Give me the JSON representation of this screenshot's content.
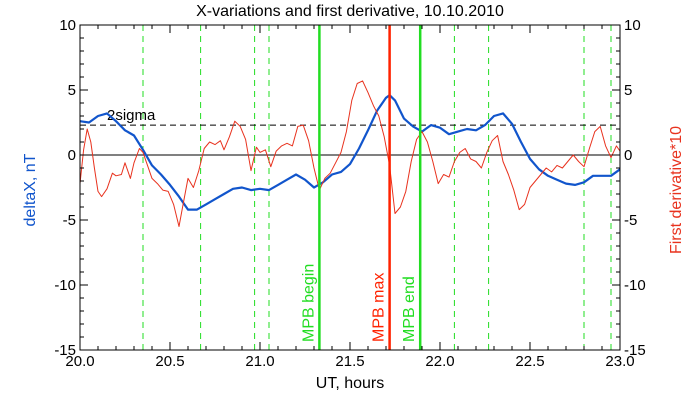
{
  "chart_data": {
    "type": "line",
    "title": "X-variations and first derivative, 10.10.2010",
    "xlabel": "UT, hours",
    "ylabel_left": "deltaX, nT",
    "ylabel_right": "First derivative*10",
    "xlim": [
      20.0,
      23.0
    ],
    "ylim": [
      -15,
      10
    ],
    "x_ticks": [
      "20.0",
      "20.5",
      "21.0",
      "21.5",
      "22.0",
      "22.5",
      "23.0"
    ],
    "y_ticks_left": [
      "-15",
      "-10",
      "-5",
      "0",
      "5",
      "10"
    ],
    "y_ticks_right": [
      "-15",
      "-10",
      "-5",
      "0",
      "5",
      "10"
    ],
    "colors": {
      "deltaX": "#1155cc",
      "derivative": "#e8321e",
      "mpb_green": "#22dd22",
      "mpb_max": "#ff2200",
      "dashed_green": "#22dd22"
    },
    "threshold": {
      "label": "2sigma",
      "value": 2.3
    },
    "zero_line": 0,
    "dashed_verticals": [
      20.35,
      20.67,
      20.97,
      21.05,
      22.08,
      22.27,
      22.8,
      22.95
    ],
    "markers": [
      {
        "label": "MPB begin",
        "x": 21.33,
        "color": "#22dd22"
      },
      {
        "label": "MPB max",
        "x": 21.72,
        "color": "#ff2200"
      },
      {
        "label": "MPB end",
        "x": 21.89,
        "color": "#22dd22"
      }
    ],
    "series": [
      {
        "key": "deltaX",
        "axis": "left",
        "color": "#1155cc",
        "x": [
          20.0,
          20.05,
          20.1,
          20.15,
          20.2,
          20.25,
          20.3,
          20.35,
          20.4,
          20.45,
          20.5,
          20.55,
          20.6,
          20.65,
          20.7,
          20.75,
          20.8,
          20.85,
          20.9,
          20.95,
          21.0,
          21.05,
          21.1,
          21.15,
          21.2,
          21.25,
          21.3,
          21.35,
          21.4,
          21.45,
          21.5,
          21.55,
          21.6,
          21.65,
          21.7,
          21.72,
          21.75,
          21.8,
          21.85,
          21.9,
          21.95,
          22.0,
          22.05,
          22.1,
          22.15,
          22.2,
          22.25,
          22.3,
          22.35,
          22.4,
          22.45,
          22.5,
          22.55,
          22.6,
          22.65,
          22.7,
          22.75,
          22.8,
          22.85,
          22.9,
          22.95,
          23.0
        ],
        "y": [
          2.6,
          2.5,
          3.0,
          3.2,
          2.6,
          1.9,
          1.5,
          0.4,
          -0.8,
          -1.5,
          -2.3,
          -3.2,
          -4.2,
          -4.2,
          -3.8,
          -3.4,
          -3.0,
          -2.6,
          -2.5,
          -2.7,
          -2.6,
          -2.7,
          -2.3,
          -1.9,
          -1.5,
          -1.9,
          -2.5,
          -2.1,
          -1.5,
          -1.3,
          -0.7,
          0.5,
          1.9,
          3.4,
          4.4,
          4.6,
          4.2,
          2.8,
          2.2,
          1.8,
          2.3,
          2.1,
          1.6,
          1.8,
          2.0,
          1.9,
          2.3,
          3.0,
          3.2,
          2.4,
          1.0,
          -0.3,
          -1.1,
          -1.6,
          -1.9,
          -2.2,
          -2.3,
          -2.1,
          -1.6,
          -1.6,
          -1.6,
          -1.1
        ]
      },
      {
        "key": "derivative",
        "axis": "right",
        "color": "#e8321e",
        "x": [
          20.0,
          20.02,
          20.04,
          20.06,
          20.08,
          20.1,
          20.12,
          20.15,
          20.18,
          20.2,
          20.23,
          20.25,
          20.28,
          20.3,
          20.33,
          20.35,
          20.37,
          20.4,
          20.43,
          20.46,
          20.49,
          20.52,
          20.55,
          20.57,
          20.6,
          20.63,
          20.66,
          20.69,
          20.72,
          20.75,
          20.78,
          20.8,
          20.83,
          20.86,
          20.89,
          20.92,
          20.95,
          20.98,
          21.0,
          21.03,
          21.06,
          21.09,
          21.12,
          21.15,
          21.18,
          21.21,
          21.24,
          21.27,
          21.3,
          21.33,
          21.36,
          21.39,
          21.42,
          21.45,
          21.48,
          21.51,
          21.54,
          21.57,
          21.6,
          21.63,
          21.66,
          21.69,
          21.72,
          21.75,
          21.78,
          21.81,
          21.84,
          21.87,
          21.9,
          21.93,
          21.96,
          21.99,
          22.02,
          22.05,
          22.08,
          22.11,
          22.14,
          22.17,
          22.2,
          22.23,
          22.26,
          22.29,
          22.32,
          22.35,
          22.38,
          22.41,
          22.44,
          22.47,
          22.5,
          22.53,
          22.56,
          22.59,
          22.62,
          22.65,
          22.68,
          22.71,
          22.74,
          22.77,
          22.8,
          22.83,
          22.86,
          22.89,
          22.92,
          22.95,
          22.98,
          23.0
        ],
        "y": [
          -2.2,
          0.4,
          2.0,
          1.0,
          -1.0,
          -2.8,
          -3.2,
          -2.6,
          -1.4,
          -1.6,
          -1.5,
          -0.6,
          -1.8,
          -0.6,
          0.5,
          0.2,
          -0.6,
          -1.8,
          -2.2,
          -2.7,
          -2.8,
          -3.8,
          -5.5,
          -4.0,
          -1.8,
          -2.5,
          -1.2,
          0.5,
          1.0,
          0.8,
          1.1,
          0.4,
          1.4,
          2.6,
          2.2,
          1.2,
          -1.2,
          0.6,
          0.2,
          0.4,
          -0.9,
          0.3,
          0.7,
          0.9,
          0.7,
          2.2,
          2.3,
          1.1,
          -1.0,
          -2.7,
          -1.8,
          -1.4,
          -0.6,
          0.2,
          1.8,
          4.2,
          5.5,
          5.7,
          4.8,
          3.8,
          3.0,
          1.4,
          -0.8,
          -4.5,
          -4.0,
          -2.8,
          -0.5,
          1.2,
          1.8,
          1.0,
          -0.5,
          -2.2,
          -1.5,
          -1.7,
          -0.5,
          0.2,
          0.5,
          -0.3,
          -0.5,
          -1.0,
          0.2,
          1.1,
          1.5,
          -0.5,
          -1.5,
          -2.7,
          -4.2,
          -3.8,
          -2.5,
          -2.0,
          -1.5,
          -1.0,
          -1.3,
          -0.8,
          -1.0,
          -0.5,
          0.0,
          -0.5,
          -0.9,
          0.5,
          1.8,
          2.2,
          0.7,
          -0.2,
          0.7,
          0.3
        ]
      }
    ]
  }
}
